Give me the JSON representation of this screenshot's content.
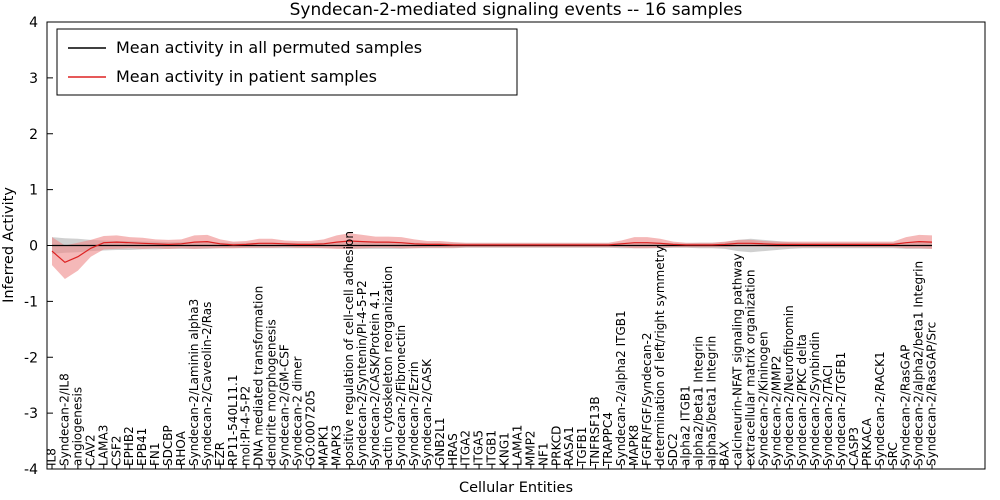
{
  "chart_data": {
    "type": "line",
    "title": "Syndecan-2-mediated signaling events -- 16 samples",
    "xlabel": "Cellular Entities",
    "ylabel": "Inferred Activity",
    "ylim": [
      -4,
      4
    ],
    "yticks": [
      -4,
      -3,
      -2,
      -1,
      0,
      1,
      2,
      3,
      4
    ],
    "grid": false,
    "legend_position": "upper left",
    "categories": [
      "IL8",
      "Syndecan-2/IL8",
      "angiogenesis",
      "CAV2",
      "LAMA3",
      "CSF2",
      "EPHB2",
      "EPB41",
      "FN1",
      "SDCBP",
      "RHOA",
      "Syndecan-2/Laminin alpha3",
      "Syndecan-2/Caveolin-2/Ras",
      "EZR",
      "RP11-540L11.1",
      "mol:PI-4-5-P2",
      "DNA mediated transformation",
      "dendrite morphogenesis",
      "Syndecan-2/GM-CSF",
      "Syndecan-2 dimer",
      "GO:0007205",
      "MAPK1",
      "MAPK3",
      "positive regulation of cell-cell adhesion",
      "Syndecan-2/Syntenin/PI-4-5-P2",
      "Syndecan-2/CASK/Protein 4.1",
      "actin cytoskeleton reorganization",
      "Syndecan-2/Fibronectin",
      "Syndecan-2/Ezrin",
      "Syndecan-2/CASK",
      "GNB2L1",
      "HRAS",
      "ITGA2",
      "ITGA5",
      "ITGB1",
      "KNG1",
      "LAMA1",
      "MMP2",
      "NF1",
      "PRKCD",
      "RASA1",
      "TGFB1",
      "TNFRSF13B",
      "TRAPPC4",
      "Syndecan-2/alpha2 ITGB1",
      "MAPK8",
      "FGFR/FGF/Syndecan-2",
      "determination of left/right symmetry",
      "SDC2",
      "alpha2 ITGB1",
      "alpha2/beta1 Integrin",
      "alpha5/beta1 Integrin",
      "BAX",
      "calcineurin-NFAT signaling pathway",
      "extracellular matrix organization",
      "Syndecan-2/Kininogen",
      "Syndecan-2/MMP2",
      "Syndecan-2/Neurofibromin",
      "Syndecan-2/PKC delta",
      "Syndecan-2/Synbindin",
      "Syndecan-2/TACI",
      "Syndecan-2/TGFB1",
      "CASP3",
      "PRKACA",
      "Syndecan-2/RACK1",
      "SRC",
      "Syndecan-2/RasGAP",
      "Syndecan-2/alpha2/beta1 Integrin",
      "Syndecan-2/RasGAP/Src"
    ],
    "series": [
      {
        "name": "Mean activity in all permuted samples",
        "color": "#000000",
        "band_color": "#c8c8c8",
        "band_opacity": 0.85,
        "values": [
          0,
          0,
          0,
          0,
          0,
          0,
          0,
          0,
          0,
          0,
          0,
          0,
          0,
          0,
          0,
          0,
          0,
          0,
          0,
          0,
          0,
          0,
          0,
          0,
          0,
          0,
          0,
          0,
          0,
          0,
          0,
          0,
          0,
          0,
          0,
          0,
          0,
          0,
          0,
          0,
          0,
          0,
          0,
          0,
          0,
          0,
          0,
          0,
          0,
          0,
          0,
          0,
          0,
          0,
          0,
          0,
          0,
          0,
          0,
          0,
          0,
          0,
          0,
          0,
          0,
          0,
          0,
          0,
          0
        ],
        "band_halfwidth": [
          0.15,
          0.13,
          0.12,
          0.1,
          0.09,
          0.08,
          0.08,
          0.07,
          0.07,
          0.06,
          0.06,
          0.06,
          0.06,
          0.05,
          0.05,
          0.05,
          0.05,
          0.05,
          0.05,
          0.05,
          0.05,
          0.05,
          0.05,
          0.06,
          0.06,
          0.06,
          0.06,
          0.06,
          0.05,
          0.05,
          0.05,
          0.05,
          0.04,
          0.04,
          0.04,
          0.04,
          0.04,
          0.04,
          0.04,
          0.04,
          0.04,
          0.04,
          0.04,
          0.04,
          0.05,
          0.05,
          0.05,
          0.05,
          0.04,
          0.04,
          0.05,
          0.05,
          0.06,
          0.1,
          0.12,
          0.1,
          0.08,
          0.06,
          0.05,
          0.05,
          0.05,
          0.05,
          0.05,
          0.05,
          0.05,
          0.05,
          0.06,
          0.06,
          0.06
        ]
      },
      {
        "name": "Mean activity in patient samples",
        "color": "#dd2222",
        "band_color": "#ee8888",
        "band_opacity": 0.6,
        "values": [
          -0.1,
          -0.3,
          -0.2,
          -0.05,
          0.05,
          0.06,
          0.05,
          0.04,
          0.03,
          0.02,
          0.03,
          0.06,
          0.07,
          0.03,
          0.01,
          0.02,
          0.04,
          0.04,
          0.03,
          0.02,
          0.02,
          0.03,
          0.06,
          0.08,
          0.07,
          0.06,
          0.06,
          0.05,
          0.03,
          0.02,
          0.02,
          0.01,
          0.01,
          0.01,
          0.01,
          0.01,
          0.01,
          0.01,
          0.01,
          0.01,
          0.01,
          0.01,
          0.01,
          0.01,
          0.03,
          0.05,
          0.05,
          0.04,
          0.02,
          0.01,
          0.01,
          0.01,
          0.02,
          0.04,
          0.04,
          0.03,
          0.02,
          0.02,
          0.02,
          0.02,
          0.02,
          0.02,
          0.02,
          0.02,
          0.02,
          0.02,
          0.05,
          0.07,
          0.06
        ],
        "band_halfwidth": [
          0.25,
          0.3,
          0.25,
          0.15,
          0.12,
          0.12,
          0.1,
          0.1,
          0.08,
          0.08,
          0.08,
          0.12,
          0.12,
          0.08,
          0.06,
          0.06,
          0.08,
          0.08,
          0.06,
          0.06,
          0.06,
          0.08,
          0.12,
          0.14,
          0.12,
          0.1,
          0.1,
          0.1,
          0.08,
          0.06,
          0.06,
          0.05,
          0.04,
          0.04,
          0.04,
          0.04,
          0.04,
          0.04,
          0.04,
          0.04,
          0.04,
          0.04,
          0.04,
          0.04,
          0.06,
          0.1,
          0.1,
          0.08,
          0.05,
          0.04,
          0.04,
          0.04,
          0.05,
          0.06,
          0.06,
          0.05,
          0.05,
          0.05,
          0.05,
          0.05,
          0.05,
          0.05,
          0.05,
          0.05,
          0.05,
          0.05,
          0.1,
          0.12,
          0.12
        ]
      }
    ]
  }
}
